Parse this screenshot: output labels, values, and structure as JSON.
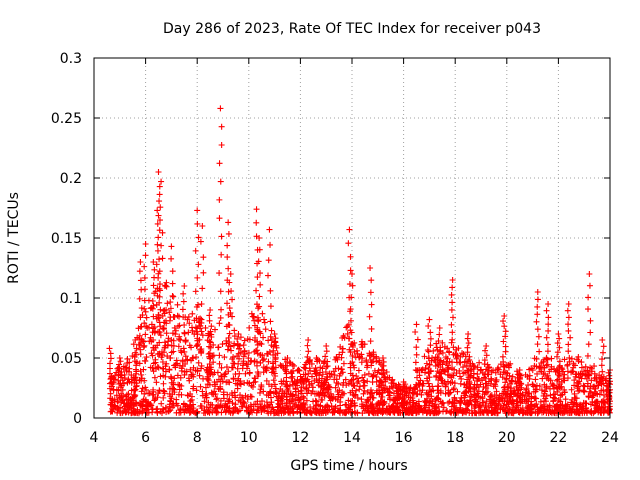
{
  "chart_data": {
    "type": "scatter",
    "title": "Day 286 of 2023, Rate Of TEC Index for receiver p043",
    "xlabel": "GPS time / hours",
    "ylabel": "ROTI / TECUs",
    "xlim": [
      4,
      24
    ],
    "ylim": [
      0,
      0.3
    ],
    "xticks": [
      4,
      6,
      8,
      10,
      12,
      14,
      16,
      18,
      20,
      22,
      24
    ],
    "yticks": [
      0,
      0.05,
      0.1,
      0.15,
      0.2,
      0.25,
      0.3
    ],
    "xtick_labels": [
      "4",
      "6",
      "8",
      "10",
      "12",
      "14",
      "16",
      "18",
      "20",
      "22",
      "24"
    ],
    "ytick_labels": [
      "0",
      "0.05",
      "0.1",
      "0.15",
      "0.2",
      "0.25",
      "0.3"
    ],
    "grid": true,
    "marker": "+",
    "color": "#ff0000",
    "envelope_description": "dense scatter of ROTI values from ~4.6 to 24 h; baseline 0.005-0.04, enhanced activity 5.5-11 h",
    "peaks": [
      {
        "x": 4.6,
        "y": 0.058
      },
      {
        "x": 5.0,
        "y": 0.05
      },
      {
        "x": 5.6,
        "y": 0.065
      },
      {
        "x": 5.8,
        "y": 0.13
      },
      {
        "x": 6.0,
        "y": 0.145
      },
      {
        "x": 6.3,
        "y": 0.13
      },
      {
        "x": 6.5,
        "y": 0.205
      },
      {
        "x": 6.6,
        "y": 0.197
      },
      {
        "x": 6.45,
        "y": 0.173
      },
      {
        "x": 7.0,
        "y": 0.143
      },
      {
        "x": 7.5,
        "y": 0.11
      },
      {
        "x": 8.0,
        "y": 0.173
      },
      {
        "x": 8.2,
        "y": 0.16
      },
      {
        "x": 8.5,
        "y": 0.09
      },
      {
        "x": 8.9,
        "y": 0.258
      },
      {
        "x": 9.2,
        "y": 0.163
      },
      {
        "x": 9.3,
        "y": 0.12
      },
      {
        "x": 9.6,
        "y": 0.07
      },
      {
        "x": 10.3,
        "y": 0.174
      },
      {
        "x": 10.4,
        "y": 0.15
      },
      {
        "x": 10.8,
        "y": 0.157
      },
      {
        "x": 11.0,
        "y": 0.07
      },
      {
        "x": 11.5,
        "y": 0.05
      },
      {
        "x": 12.3,
        "y": 0.065
      },
      {
        "x": 13.0,
        "y": 0.06
      },
      {
        "x": 13.9,
        "y": 0.157
      },
      {
        "x": 14.0,
        "y": 0.12
      },
      {
        "x": 14.7,
        "y": 0.125
      },
      {
        "x": 15.2,
        "y": 0.05
      },
      {
        "x": 16.0,
        "y": 0.03
      },
      {
        "x": 16.5,
        "y": 0.078
      },
      {
        "x": 17.0,
        "y": 0.082
      },
      {
        "x": 17.4,
        "y": 0.075
      },
      {
        "x": 17.9,
        "y": 0.115
      },
      {
        "x": 18.5,
        "y": 0.07
      },
      {
        "x": 19.2,
        "y": 0.06
      },
      {
        "x": 19.9,
        "y": 0.085
      },
      {
        "x": 20.5,
        "y": 0.04
      },
      {
        "x": 21.2,
        "y": 0.105
      },
      {
        "x": 21.6,
        "y": 0.095
      },
      {
        "x": 22.0,
        "y": 0.07
      },
      {
        "x": 22.4,
        "y": 0.095
      },
      {
        "x": 23.2,
        "y": 0.12
      },
      {
        "x": 23.7,
        "y": 0.065
      },
      {
        "x": 24.0,
        "y": 0.04
      }
    ]
  }
}
